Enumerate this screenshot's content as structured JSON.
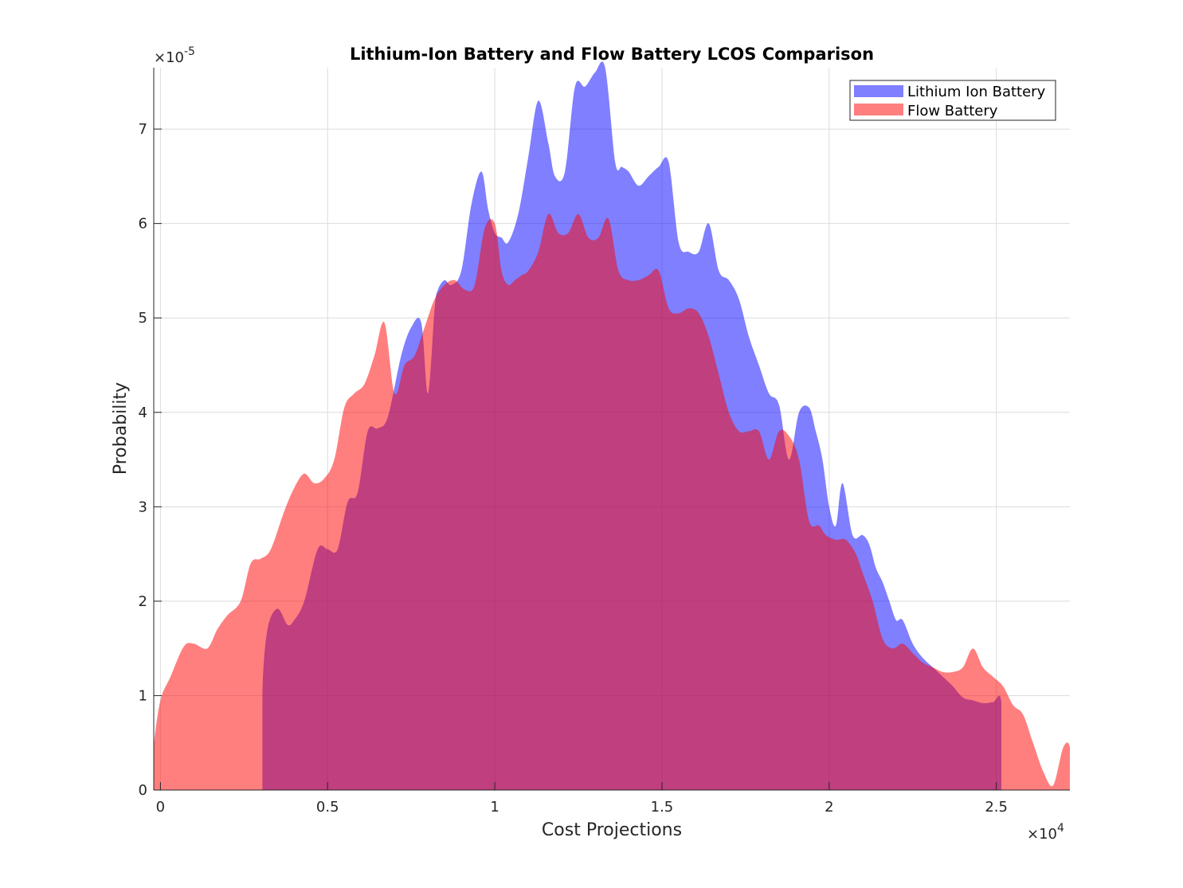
{
  "chart_data": {
    "type": "area",
    "title": "Lithium-Ion Battery and Flow Battery LCOS Comparison",
    "xlabel": "Cost Projections",
    "ylabel": "Probability",
    "x_multiplier": {
      "prefix": "×10",
      "exponent": "4"
    },
    "y_multiplier": {
      "prefix": "×10",
      "exponent": "-5"
    },
    "xlim": [
      -0.02,
      2.72
    ],
    "ylim": [
      0,
      7.65
    ],
    "grid": true,
    "legend_position": "top-right",
    "x_ticks": [
      0,
      0.5,
      1,
      1.5,
      2,
      2.5
    ],
    "x_tick_labels": [
      "0",
      "0.5",
      "1",
      "1.5",
      "2",
      "2.5"
    ],
    "y_ticks": [
      0,
      1,
      2,
      3,
      4,
      5,
      6,
      7
    ],
    "y_tick_labels": [
      "0",
      "1",
      "2",
      "3",
      "4",
      "5",
      "6",
      "7"
    ],
    "series": [
      {
        "name": "Lithium Ion Battery",
        "color": "#0000ff",
        "opacity": 0.5,
        "x": [
          0.305,
          0.305,
          0.32,
          0.35,
          0.38,
          0.4,
          0.43,
          0.47,
          0.5,
          0.53,
          0.56,
          0.59,
          0.62,
          0.65,
          0.68,
          0.72,
          0.75,
          0.78,
          0.8,
          0.82,
          0.83,
          0.85,
          0.87,
          0.9,
          0.93,
          0.96,
          0.98,
          1.0,
          1.02,
          1.04,
          1.07,
          1.1,
          1.13,
          1.16,
          1.18,
          1.21,
          1.24,
          1.27,
          1.3,
          1.33,
          1.36,
          1.38,
          1.4,
          1.43,
          1.46,
          1.49,
          1.52,
          1.55,
          1.58,
          1.61,
          1.64,
          1.67,
          1.7,
          1.73,
          1.76,
          1.79,
          1.82,
          1.85,
          1.88,
          1.91,
          1.94,
          1.96,
          1.98,
          2.0,
          2.02,
          2.04,
          2.07,
          2.1,
          2.12,
          2.14,
          2.16,
          2.18,
          2.2,
          2.22,
          2.25,
          2.28,
          2.31,
          2.34,
          2.37,
          2.4,
          2.43,
          2.46,
          2.49,
          2.515,
          2.515
        ],
        "y": [
          0,
          1.05,
          1.7,
          1.92,
          1.75,
          1.8,
          2.0,
          2.55,
          2.55,
          2.55,
          3.05,
          3.15,
          3.8,
          3.83,
          3.95,
          4.6,
          4.9,
          4.95,
          4.2,
          5.1,
          5.3,
          5.4,
          5.35,
          5.5,
          6.2,
          6.55,
          6.15,
          5.9,
          5.85,
          5.8,
          6.1,
          6.7,
          7.3,
          6.85,
          6.5,
          6.55,
          7.45,
          7.45,
          7.6,
          7.65,
          6.65,
          6.6,
          6.55,
          6.4,
          6.5,
          6.6,
          6.65,
          5.8,
          5.7,
          5.7,
          6.0,
          5.5,
          5.4,
          5.2,
          4.8,
          4.5,
          4.2,
          4.08,
          3.5,
          4.0,
          4.05,
          3.8,
          3.5,
          3.0,
          2.8,
          3.25,
          2.7,
          2.7,
          2.6,
          2.35,
          2.2,
          2.0,
          1.8,
          1.8,
          1.55,
          1.4,
          1.3,
          1.2,
          1.1,
          0.98,
          0.95,
          0.92,
          0.93,
          0.93,
          0
        ]
      },
      {
        "name": "Flow Battery",
        "color": "#ff0000",
        "opacity": 0.5,
        "x": [
          -0.02,
          -0.02,
          0.0,
          0.03,
          0.07,
          0.1,
          0.14,
          0.17,
          0.2,
          0.24,
          0.27,
          0.3,
          0.33,
          0.37,
          0.4,
          0.43,
          0.46,
          0.49,
          0.52,
          0.55,
          0.58,
          0.61,
          0.64,
          0.67,
          0.7,
          0.73,
          0.76,
          0.79,
          0.82,
          0.85,
          0.88,
          0.91,
          0.94,
          0.97,
          1.0,
          1.02,
          1.04,
          1.06,
          1.08,
          1.1,
          1.13,
          1.16,
          1.19,
          1.22,
          1.25,
          1.28,
          1.31,
          1.34,
          1.37,
          1.4,
          1.43,
          1.46,
          1.49,
          1.52,
          1.55,
          1.58,
          1.61,
          1.64,
          1.67,
          1.7,
          1.73,
          1.76,
          1.79,
          1.82,
          1.85,
          1.88,
          1.91,
          1.94,
          1.97,
          1.99,
          2.02,
          2.05,
          2.08,
          2.1,
          2.13,
          2.16,
          2.19,
          2.22,
          2.25,
          2.28,
          2.31,
          2.34,
          2.37,
          2.4,
          2.43,
          2.46,
          2.49,
          2.52,
          2.55,
          2.58,
          2.61,
          2.64,
          2.67,
          2.7,
          2.72,
          2.72
        ],
        "y": [
          0,
          0.45,
          0.95,
          1.2,
          1.52,
          1.55,
          1.5,
          1.7,
          1.85,
          2.0,
          2.4,
          2.45,
          2.55,
          2.95,
          3.2,
          3.35,
          3.25,
          3.3,
          3.5,
          4.05,
          4.2,
          4.3,
          4.6,
          4.95,
          4.2,
          4.5,
          4.6,
          4.9,
          5.2,
          5.35,
          5.4,
          5.3,
          5.35,
          5.95,
          6.0,
          5.5,
          5.35,
          5.4,
          5.45,
          5.5,
          5.7,
          6.1,
          5.9,
          5.9,
          6.1,
          5.85,
          5.85,
          6.05,
          5.5,
          5.4,
          5.4,
          5.45,
          5.5,
          5.1,
          5.05,
          5.1,
          5.05,
          4.8,
          4.4,
          4.0,
          3.8,
          3.8,
          3.8,
          3.5,
          3.8,
          3.75,
          3.5,
          2.85,
          2.8,
          2.7,
          2.65,
          2.65,
          2.5,
          2.3,
          2.0,
          1.6,
          1.5,
          1.55,
          1.45,
          1.35,
          1.3,
          1.25,
          1.25,
          1.3,
          1.5,
          1.3,
          1.2,
          1.1,
          0.9,
          0.8,
          0.5,
          0.2,
          0.05,
          0.45,
          0.45,
          0
        ]
      }
    ]
  }
}
